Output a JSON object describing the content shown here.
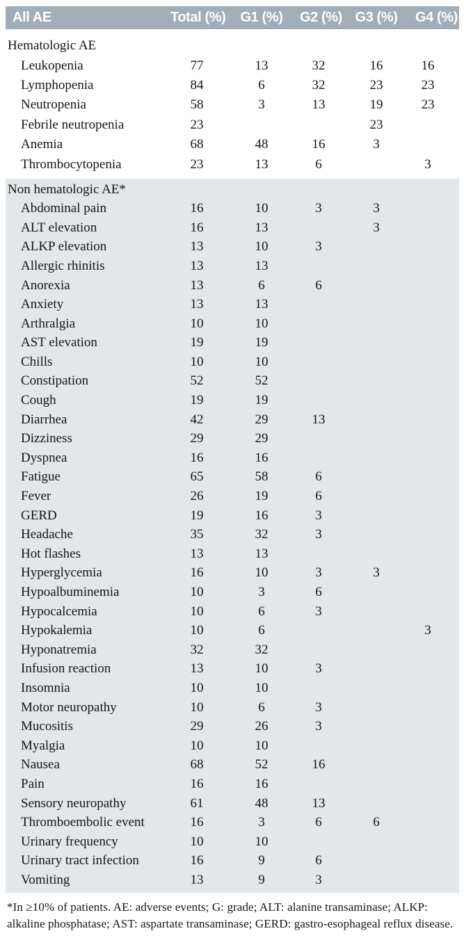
{
  "colors": {
    "header_bg": "#a2adb8",
    "section_bg": "#e3e7ea",
    "header_text": "#ffffff",
    "body_text": "#141414"
  },
  "table": {
    "header": {
      "col0": "All AE",
      "cols": [
        "Total (%)",
        "G1 (%)",
        "G2 (%)",
        "G3 (%)",
        "G4 (%)"
      ]
    },
    "sections": [
      {
        "title": "Hematologic AE",
        "shaded": false,
        "rows": [
          {
            "label": "Leukopenia",
            "values": [
              "77",
              "13",
              "32",
              "16",
              "16"
            ]
          },
          {
            "label": "Lymphopenia",
            "values": [
              "84",
              "6",
              "32",
              "23",
              "23"
            ]
          },
          {
            "label": "Neutropenia",
            "values": [
              "58",
              "3",
              "13",
              "19",
              "23"
            ]
          },
          {
            "label": "Febrile neutropenia",
            "values": [
              "23",
              "",
              "",
              "23",
              ""
            ]
          },
          {
            "label": "Anemia",
            "values": [
              "68",
              "48",
              "16",
              "3",
              ""
            ]
          },
          {
            "label": "Thrombocytopenia",
            "values": [
              "23",
              "13",
              "6",
              "",
              "3"
            ]
          }
        ]
      },
      {
        "title": "Non hematologic AE*",
        "shaded": true,
        "rows": [
          {
            "label": "Abdominal pain",
            "values": [
              "16",
              "10",
              "3",
              "3",
              ""
            ]
          },
          {
            "label": "ALT elevation",
            "values": [
              "16",
              "13",
              "",
              "3",
              ""
            ]
          },
          {
            "label": "ALKP elevation",
            "values": [
              "13",
              "10",
              "3",
              "",
              ""
            ]
          },
          {
            "label": "Allergic rhinitis",
            "values": [
              "13",
              "13",
              "",
              "",
              ""
            ]
          },
          {
            "label": "Anorexia",
            "values": [
              "13",
              "6",
              "6",
              "",
              ""
            ]
          },
          {
            "label": "Anxiety",
            "values": [
              "13",
              "13",
              "",
              "",
              ""
            ]
          },
          {
            "label": "Arthralgia",
            "values": [
              "10",
              "10",
              "",
              "",
              ""
            ]
          },
          {
            "label": "AST elevation",
            "values": [
              "19",
              "19",
              "",
              "",
              ""
            ]
          },
          {
            "label": "Chills",
            "values": [
              "10",
              "10",
              "",
              "",
              ""
            ]
          },
          {
            "label": "Constipation",
            "values": [
              "52",
              "52",
              "",
              "",
              ""
            ]
          },
          {
            "label": "Cough",
            "values": [
              "19",
              "19",
              "",
              "",
              ""
            ]
          },
          {
            "label": "Diarrhea",
            "values": [
              "42",
              "29",
              "13",
              "",
              ""
            ]
          },
          {
            "label": "Dizziness",
            "values": [
              "29",
              "29",
              "",
              "",
              ""
            ]
          },
          {
            "label": "Dyspnea",
            "values": [
              "16",
              "16",
              "",
              "",
              ""
            ]
          },
          {
            "label": "Fatigue",
            "values": [
              "65",
              "58",
              "6",
              "",
              ""
            ]
          },
          {
            "label": "Fever",
            "values": [
              "26",
              "19",
              "6",
              "",
              ""
            ]
          },
          {
            "label": "GERD",
            "values": [
              "19",
              "16",
              "3",
              "",
              ""
            ]
          },
          {
            "label": "Headache",
            "values": [
              "35",
              "32",
              "3",
              "",
              ""
            ]
          },
          {
            "label": "Hot flashes",
            "values": [
              "13",
              "13",
              "",
              "",
              ""
            ]
          },
          {
            "label": "Hyperglycemia",
            "values": [
              "16",
              "10",
              "3",
              "3",
              ""
            ]
          },
          {
            "label": "Hypoalbuminemia",
            "values": [
              "10",
              "3",
              "6",
              "",
              ""
            ]
          },
          {
            "label": "Hypocalcemia",
            "values": [
              "10",
              "6",
              "3",
              "",
              ""
            ]
          },
          {
            "label": "Hypokalemia",
            "values": [
              "10",
              "6",
              "",
              "",
              "3"
            ]
          },
          {
            "label": "Hyponatremia",
            "values": [
              "32",
              "32",
              "",
              "",
              ""
            ]
          },
          {
            "label": "Infusion reaction",
            "values": [
              "13",
              "10",
              "3",
              "",
              ""
            ]
          },
          {
            "label": "Insomnia",
            "values": [
              "10",
              "10",
              "",
              "",
              ""
            ]
          },
          {
            "label": "Motor neuropathy",
            "values": [
              "10",
              "6",
              "3",
              "",
              ""
            ]
          },
          {
            "label": "Mucositis",
            "values": [
              "29",
              "26",
              "3",
              "",
              ""
            ]
          },
          {
            "label": "Myalgia",
            "values": [
              "10",
              "10",
              "",
              "",
              ""
            ]
          },
          {
            "label": "Nausea",
            "values": [
              "68",
              "52",
              "16",
              "",
              ""
            ]
          },
          {
            "label": "Pain",
            "values": [
              "16",
              "16",
              "",
              "",
              ""
            ]
          },
          {
            "label": "Sensory neuropathy",
            "values": [
              "61",
              "48",
              "13",
              "",
              ""
            ]
          },
          {
            "label": "Thromboembolic event",
            "values": [
              "16",
              "3",
              "6",
              "6",
              ""
            ]
          },
          {
            "label": "Urinary frequency",
            "values": [
              "10",
              "10",
              "",
              "",
              ""
            ]
          },
          {
            "label": "Urinary tract infection",
            "values": [
              "16",
              "9",
              "6",
              "",
              ""
            ]
          },
          {
            "label": "Vomiting",
            "values": [
              "13",
              "9",
              "3",
              "",
              ""
            ]
          }
        ]
      }
    ],
    "footnote": "*In ≥10% of patients. AE: adverse events; G: grade; ALT: alanine transaminase; ALKP: alkaline phosphatase; AST: aspartate transaminase; GERD: gastro-esophageal reflux disease."
  }
}
